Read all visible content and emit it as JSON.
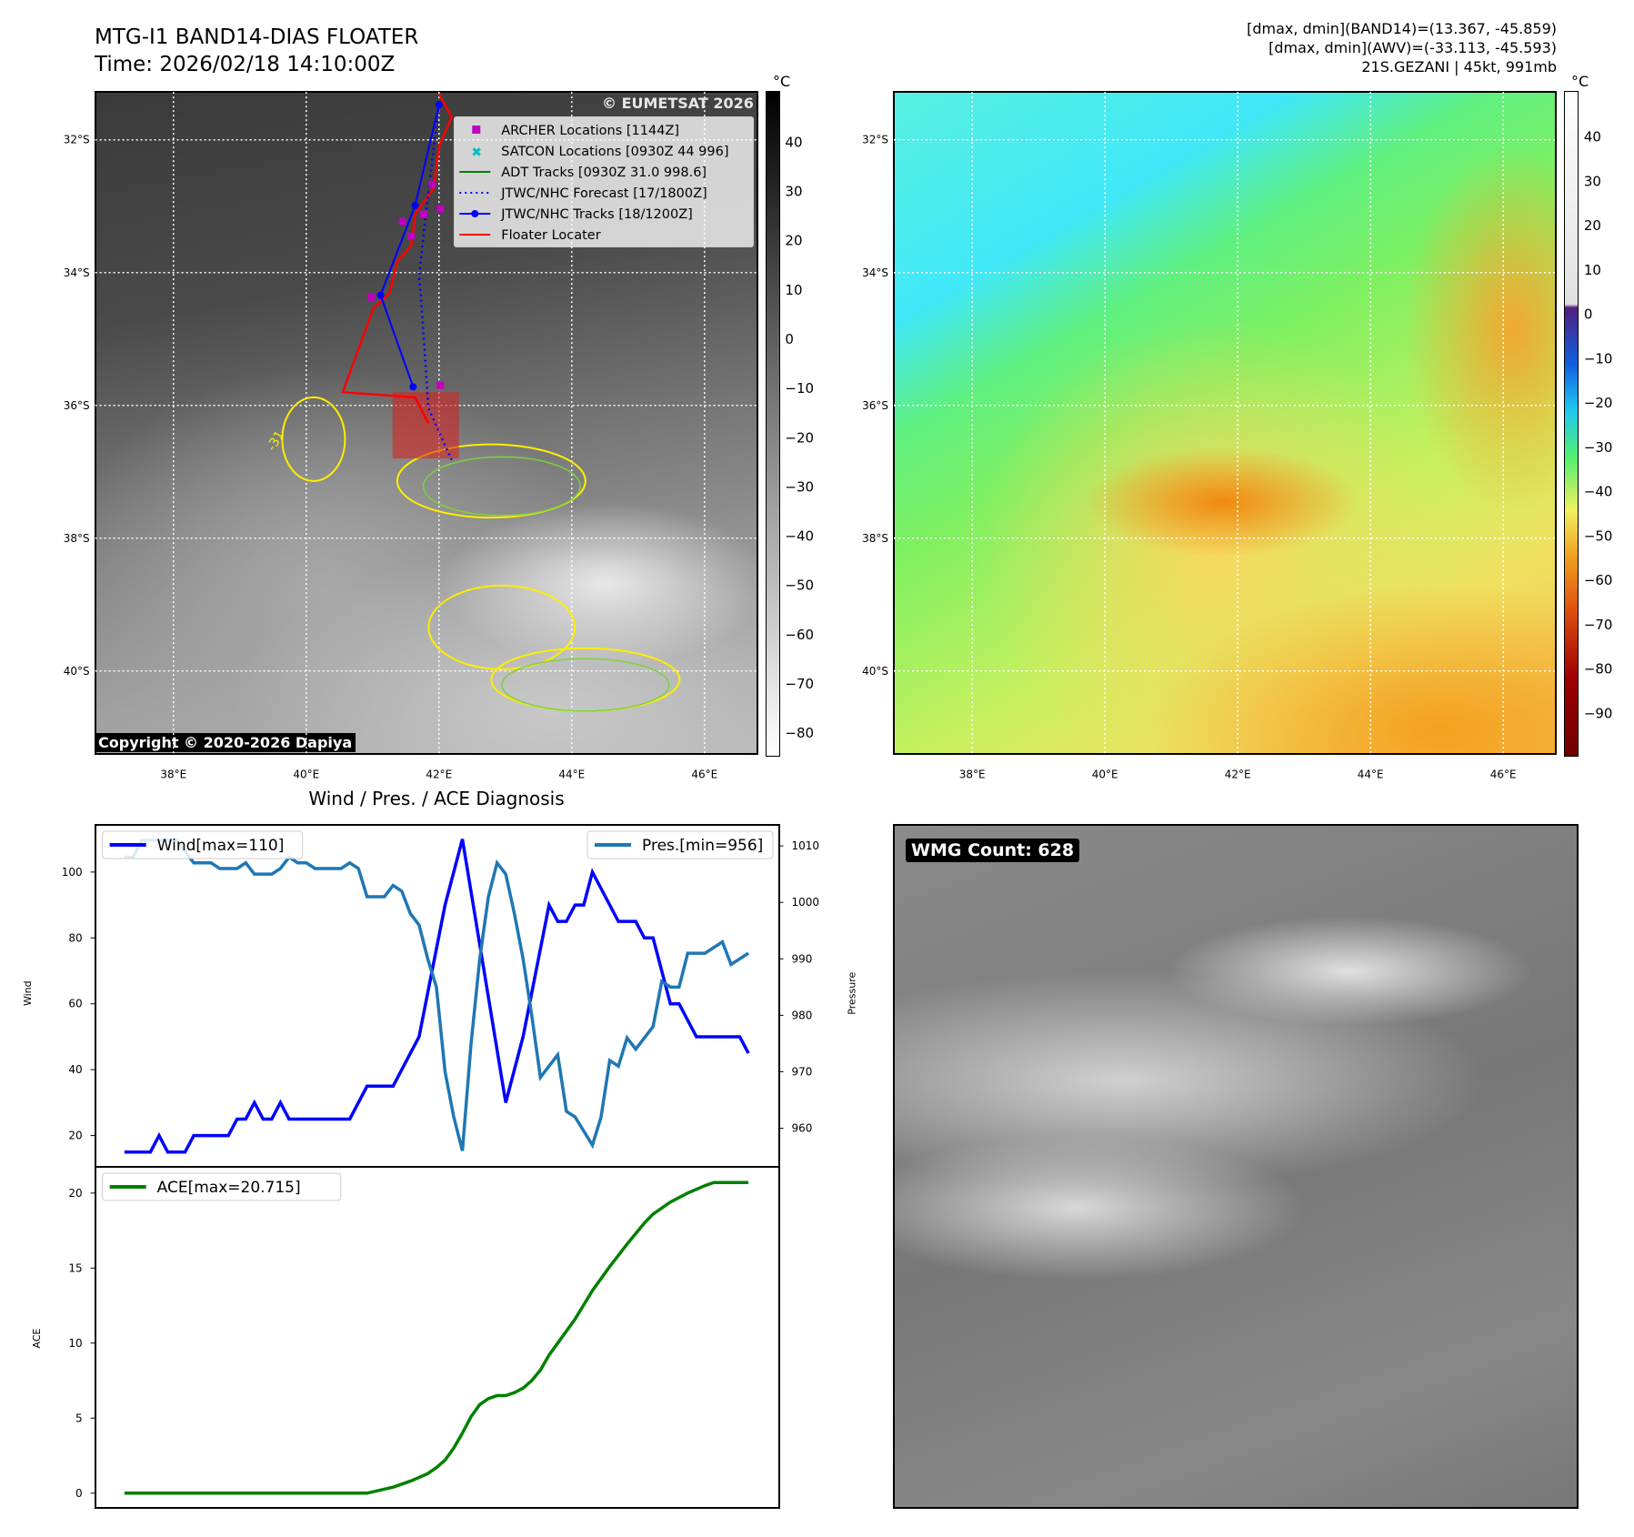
{
  "header": {
    "title": "MTG-I1 BAND14-DIAS FLOATER",
    "time": "Time: 2026/02/18 14:10:00Z",
    "info1": "[dmax, dmin](BAND14)=(13.367, -45.859)",
    "info2": "[dmax, dmin](AWV)=(-33.113, -45.593)",
    "info3": "21S.GEZANI | 45kt, 991mb"
  },
  "map": {
    "lon_ticks": [
      "38°E",
      "40°E",
      "42°E",
      "44°E",
      "46°E"
    ],
    "lat_ticks": [
      "32°S",
      "34°S",
      "36°S",
      "38°S",
      "40°S"
    ],
    "copyright": "Copyright © 2020-2026 Dapiya",
    "watermark": "© EUMETSAT 2026",
    "contour_label": "-31",
    "legend": [
      "ARCHER Locations [1144Z]",
      "SATCON Locations [0930Z 44 996]",
      "ADT Tracks [0930Z 31.0 998.6]",
      "JTWC/NHC Forecast [17/1800Z]",
      "JTWC/NHC Tracks [18/1200Z]",
      "Floater Locater"
    ],
    "jtwc_track": [
      [
        42.0,
        31.47
      ],
      [
        41.64,
        32.99
      ],
      [
        41.12,
        34.34
      ],
      [
        41.61,
        35.72
      ]
    ],
    "jtwc_forecast": [
      [
        42.0,
        31.47
      ],
      [
        41.81,
        33.04
      ],
      [
        41.7,
        34.07
      ],
      [
        41.73,
        34.38
      ],
      [
        41.84,
        36.04
      ],
      [
        42.19,
        36.82
      ]
    ],
    "floater": [
      [
        42.0,
        31.31
      ],
      [
        42.19,
        31.66
      ],
      [
        42.0,
        32.1
      ],
      [
        41.92,
        32.73
      ],
      [
        41.64,
        33.12
      ],
      [
        41.58,
        33.6
      ],
      [
        41.37,
        33.83
      ],
      [
        41.26,
        34.3
      ],
      [
        41.01,
        34.54
      ],
      [
        40.55,
        35.8
      ],
      [
        41.64,
        35.88
      ],
      [
        41.84,
        36.27
      ]
    ],
    "floater_box": {
      "lon": [
        41.3,
        42.3
      ],
      "lat": [
        35.8,
        36.8
      ]
    },
    "archer": [
      [
        41.9,
        32.67
      ],
      [
        41.45,
        33.23
      ],
      [
        41.77,
        33.12
      ],
      [
        42.02,
        33.04
      ],
      [
        41.58,
        33.45
      ],
      [
        40.98,
        34.37
      ],
      [
        42.02,
        35.7
      ]
    ],
    "colors": {
      "jtwc": "#0000ff",
      "floater": "#ff0000",
      "archer": "#c000c0",
      "satcon": "#00bfbf",
      "adt": "#008000"
    }
  },
  "colorbar1": {
    "unit": "°C",
    "ticks": [
      "40",
      "30",
      "20",
      "10",
      "0",
      "−10",
      "−20",
      "−30",
      "−40",
      "−50",
      "−60",
      "−70",
      "−80"
    ]
  },
  "colorbar2": {
    "unit": "°C",
    "ticks": [
      "40",
      "30",
      "20",
      "10",
      "0",
      "−10",
      "−20",
      "−30",
      "−40",
      "−50",
      "−60",
      "−70",
      "−80",
      "−90"
    ]
  },
  "wmg": {
    "label": "WMG Count: 628"
  },
  "chart_data": [
    {
      "type": "line",
      "title": "Wind / Pres. / ACE Diagnosis",
      "ylabel": "Wind",
      "y2label": "Pressure",
      "xlabel": "",
      "ylim": [
        10,
        115
      ],
      "y2lim": [
        953,
        1015
      ],
      "yticks": [
        "20",
        "40",
        "60",
        "80",
        "100"
      ],
      "y2ticks": [
        "960",
        "970",
        "980",
        "990",
        "1000",
        "1010"
      ],
      "series": [
        {
          "name": "Wind[max=110]",
          "axis": "left",
          "color": "#0000ff",
          "x": [
            0,
            3,
            4,
            5,
            7,
            8,
            12,
            13,
            14,
            15,
            16,
            17,
            18,
            19,
            26,
            28,
            31,
            34,
            37,
            39,
            44,
            46,
            49,
            50,
            51,
            52,
            53,
            54,
            57,
            59,
            60,
            61,
            63,
            64,
            66,
            71,
            72
          ],
          "y": [
            15,
            15,
            20,
            15,
            15,
            20,
            20,
            25,
            25,
            30,
            25,
            25,
            30,
            25,
            25,
            35,
            35,
            50,
            90,
            110,
            30,
            50,
            90,
            85,
            85,
            90,
            90,
            100,
            85,
            85,
            80,
            80,
            60,
            60,
            50,
            50,
            45
          ]
        },
        {
          "name": "Pres.[min=956]",
          "axis": "right",
          "color": "#1f77b4",
          "x": [
            0,
            1,
            2,
            6,
            8,
            10,
            11,
            13,
            14,
            15,
            17,
            18,
            19,
            20,
            21,
            22,
            25,
            26,
            27,
            28,
            30,
            31,
            32,
            33,
            34,
            35,
            36,
            37,
            38,
            39,
            40,
            41,
            42,
            43,
            44,
            45,
            46,
            47,
            48,
            49,
            50,
            51,
            52,
            54,
            55,
            56,
            57,
            58,
            59,
            61,
            62,
            63,
            64,
            65,
            67,
            69,
            70,
            72
          ],
          "y": [
            1008,
            1008,
            1011,
            1011,
            1007,
            1007,
            1006,
            1006,
            1007,
            1005,
            1005,
            1006,
            1008,
            1007,
            1007,
            1006,
            1006,
            1007,
            1006,
            1001,
            1001,
            1003,
            1002,
            998,
            996,
            990,
            985,
            970,
            962,
            956,
            975,
            990,
            1001,
            1007,
            1005,
            998,
            990,
            980,
            969,
            971,
            973,
            963,
            962,
            957,
            962,
            972,
            971,
            976,
            974,
            978,
            986,
            985,
            985,
            991,
            991,
            993,
            989,
            991
          ]
        }
      ]
    },
    {
      "type": "line",
      "ylabel": "ACE",
      "ylim": [
        -1,
        22
      ],
      "yticks": [
        "0",
        "5",
        "10",
        "15",
        "20"
      ],
      "series": [
        {
          "name": "ACE[max=20.715]",
          "color": "#008000",
          "x": [
            0,
            28,
            31,
            33,
            35,
            36,
            37,
            38,
            39,
            40,
            41,
            42,
            43,
            44,
            45,
            46,
            47,
            48,
            49,
            50,
            52,
            54,
            56,
            58,
            60,
            61,
            63,
            65,
            67,
            68,
            72
          ],
          "y": [
            0,
            0,
            0.4,
            0.8,
            1.3,
            1.7,
            2.2,
            3,
            4,
            5.1,
            5.9,
            6.3,
            6.5,
            6.5,
            6.7,
            7,
            7.5,
            8.2,
            9.2,
            10,
            11.6,
            13.5,
            15.1,
            16.6,
            18,
            18.6,
            19.4,
            20,
            20.5,
            20.7,
            20.7
          ]
        }
      ]
    }
  ]
}
